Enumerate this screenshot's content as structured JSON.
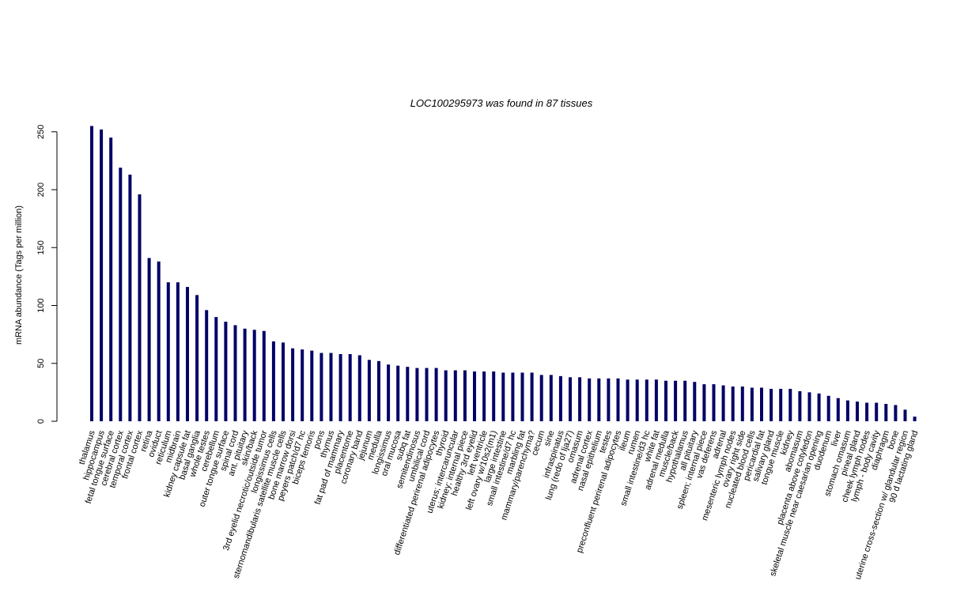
{
  "chart_data": {
    "type": "bar",
    "title": "LOC100295973  was found in  87  tissues",
    "xlabel": "",
    "ylabel": "mRNA abundance (Tags per million)",
    "ylim": [
      0,
      260
    ],
    "yticks": [
      0,
      50,
      100,
      150,
      200,
      250
    ],
    "grid": false,
    "bar_color": "#000066",
    "categories": [
      "thalamus",
      "hippocampus",
      "fetal tongue surface",
      "cerebral cortex",
      "temporal cortex",
      "frontal cortex",
      "retina",
      "oviduct",
      "reticulum",
      "midbrain",
      "kidney capsule fat",
      "basal ganglia",
      "whole testes",
      "cerebellum",
      "outer tongue surface",
      "spinal cord",
      "ant. pituitary",
      "skin/back",
      "3rd eyelid necrotic/outside tumor",
      "longissimus cells",
      "sternomandibularis satellite muscle cells",
      "bone marrow dorsi",
      "peyers patch/d7 hc",
      "biceps femoris",
      "pons",
      "thymus",
      "fat pad of mammary",
      "placentome",
      "coronary band",
      "jejunum",
      "medulla",
      "longissimus",
      "oral mucosa",
      "subq fat",
      "semitendinosus",
      "umbilical cord",
      "differentiated perirenal adipocytes",
      "thyroid",
      "uterus; intercaruncular",
      "kidney; internal piece",
      "healthy 3rd eyelid",
      "left ventricle",
      "left ovary w/10s2(m1)",
      "large intestine",
      "small intestine/d7 hc",
      "marbling fat",
      "mammary/parenchyma?",
      "cecum",
      "sine",
      "infraspinatus",
      "lung (redo of lja27)",
      "omasum",
      "adrenal cortex",
      "nasal epithelium",
      "testes",
      "preconfluent perirenal adipocytes",
      "ileum",
      "rumen",
      "small intestine/d3 hc",
      "white fat",
      "adrenal medulla",
      "muscle/back",
      "hypothalamus",
      "all pituitary",
      "spleen; internal piece",
      "vas deferens",
      "adrenal",
      "mesenteric lymph nodes",
      "ovary right side",
      "nucleated blood cells",
      "pericardial fat",
      "salivary gland",
      "tongue muscle",
      "kidney",
      "abomasum",
      "placenta above cotyledon",
      "skeletal muscle near caesarian opening",
      "duodenum",
      "liver",
      "stomach omasum",
      "pineal gland",
      "cheek lymph nodes",
      "lymph - body cavity",
      "diaphragm",
      "bone",
      "uterine cross-section w/ glandular region",
      "90 d lactating gland"
    ],
    "values": [
      255,
      252,
      245,
      219,
      213,
      196,
      141,
      138,
      120,
      120,
      116,
      109,
      96,
      90,
      86,
      83,
      80,
      79,
      78,
      69,
      68,
      63,
      62,
      61,
      59,
      59,
      58,
      58,
      57,
      53,
      52,
      49,
      48,
      47,
      46,
      46,
      46,
      44,
      44,
      44,
      43,
      43,
      43,
      42,
      42,
      42,
      42,
      40,
      40,
      39,
      38,
      38,
      37,
      37,
      37,
      37,
      36,
      36,
      36,
      36,
      35,
      35,
      35,
      34,
      32,
      32,
      31,
      30,
      30,
      29,
      29,
      28,
      28,
      28,
      26,
      25,
      24,
      22,
      20,
      18,
      17,
      16,
      16,
      15,
      14,
      10,
      4
    ]
  }
}
